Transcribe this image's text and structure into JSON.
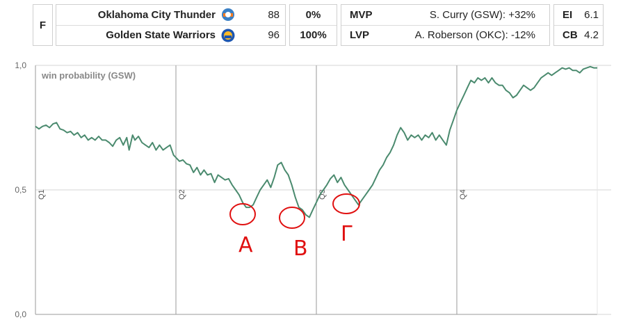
{
  "scoreboard": {
    "status": "F",
    "teams": [
      {
        "name": "Oklahoma City Thunder",
        "score": "88",
        "win_pct": "0%",
        "logo_icon": "okc-thunder-logo-icon",
        "logo_color": "#3a7fc4"
      },
      {
        "name": "Golden State Warriors",
        "score": "96",
        "win_pct": "100%",
        "logo_icon": "gsw-warriors-logo-icon",
        "logo_color": "#1d56b0"
      }
    ],
    "mvp": {
      "label": "MVP",
      "value": "S. Curry (GSW): +32%"
    },
    "lvp": {
      "label": "LVP",
      "value": "A. Roberson (OKC): -12%"
    },
    "ei": {
      "label": "EI",
      "value": "6.1"
    },
    "cb": {
      "label": "CB",
      "value": "4.2"
    }
  },
  "annotations": {
    "labels": [
      "A",
      "B",
      "Γ"
    ],
    "color": "#e01010"
  },
  "chart_data": {
    "type": "line",
    "title": "win probability (GSW)",
    "xlabel": "",
    "ylabel": "",
    "xlim": [
      0,
      48
    ],
    "ylim": [
      0,
      1
    ],
    "y_ticks": [
      "0,0",
      "0,5",
      "1,0"
    ],
    "y_tick_values": [
      0,
      0.5,
      1.0
    ],
    "quarter_labels": [
      "Q1",
      "Q2",
      "Q3",
      "Q4"
    ],
    "quarter_starts": [
      0,
      12,
      24,
      36
    ],
    "line_color": "#4a8a6e",
    "grid": true,
    "series": [
      {
        "values": [
          [
            0,
            0.755
          ],
          [
            0.3,
            0.745
          ],
          [
            0.6,
            0.755
          ],
          [
            0.9,
            0.76
          ],
          [
            1.2,
            0.75
          ],
          [
            1.5,
            0.765
          ],
          [
            1.8,
            0.77
          ],
          [
            2.1,
            0.745
          ],
          [
            2.4,
            0.74
          ],
          [
            2.7,
            0.73
          ],
          [
            3.0,
            0.735
          ],
          [
            3.3,
            0.72
          ],
          [
            3.6,
            0.73
          ],
          [
            3.9,
            0.71
          ],
          [
            4.2,
            0.72
          ],
          [
            4.5,
            0.7
          ],
          [
            4.8,
            0.71
          ],
          [
            5.1,
            0.7
          ],
          [
            5.4,
            0.715
          ],
          [
            5.7,
            0.7
          ],
          [
            6.0,
            0.7
          ],
          [
            6.3,
            0.69
          ],
          [
            6.6,
            0.675
          ],
          [
            6.9,
            0.7
          ],
          [
            7.2,
            0.71
          ],
          [
            7.5,
            0.68
          ],
          [
            7.8,
            0.71
          ],
          [
            8.0,
            0.66
          ],
          [
            8.3,
            0.72
          ],
          [
            8.5,
            0.7
          ],
          [
            8.8,
            0.715
          ],
          [
            9.1,
            0.69
          ],
          [
            9.4,
            0.68
          ],
          [
            9.7,
            0.67
          ],
          [
            10.0,
            0.69
          ],
          [
            10.3,
            0.66
          ],
          [
            10.6,
            0.68
          ],
          [
            10.9,
            0.66
          ],
          [
            11.2,
            0.67
          ],
          [
            11.5,
            0.68
          ],
          [
            11.8,
            0.64
          ],
          [
            12.0,
            0.63
          ],
          [
            12.3,
            0.615
          ],
          [
            12.6,
            0.62
          ],
          [
            12.9,
            0.605
          ],
          [
            13.2,
            0.6
          ],
          [
            13.5,
            0.57
          ],
          [
            13.8,
            0.59
          ],
          [
            14.1,
            0.56
          ],
          [
            14.4,
            0.58
          ],
          [
            14.7,
            0.56
          ],
          [
            15.0,
            0.565
          ],
          [
            15.3,
            0.53
          ],
          [
            15.6,
            0.56
          ],
          [
            15.9,
            0.55
          ],
          [
            16.2,
            0.54
          ],
          [
            16.5,
            0.545
          ],
          [
            16.8,
            0.52
          ],
          [
            17.1,
            0.5
          ],
          [
            17.4,
            0.48
          ],
          [
            17.7,
            0.45
          ],
          [
            18.0,
            0.43
          ],
          [
            18.3,
            0.43
          ],
          [
            18.6,
            0.44
          ],
          [
            18.9,
            0.47
          ],
          [
            19.2,
            0.5
          ],
          [
            19.5,
            0.52
          ],
          [
            19.8,
            0.54
          ],
          [
            20.1,
            0.51
          ],
          [
            20.4,
            0.55
          ],
          [
            20.7,
            0.6
          ],
          [
            21.0,
            0.61
          ],
          [
            21.3,
            0.58
          ],
          [
            21.6,
            0.56
          ],
          [
            21.9,
            0.52
          ],
          [
            22.2,
            0.47
          ],
          [
            22.5,
            0.43
          ],
          [
            22.8,
            0.42
          ],
          [
            23.1,
            0.4
          ],
          [
            23.4,
            0.39
          ],
          [
            23.7,
            0.42
          ],
          [
            24.0,
            0.45
          ],
          [
            24.3,
            0.48
          ],
          [
            24.6,
            0.5
          ],
          [
            24.9,
            0.52
          ],
          [
            25.2,
            0.545
          ],
          [
            25.5,
            0.56
          ],
          [
            25.8,
            0.53
          ],
          [
            26.1,
            0.55
          ],
          [
            26.4,
            0.52
          ],
          [
            26.7,
            0.5
          ],
          [
            27.0,
            0.48
          ],
          [
            27.3,
            0.46
          ],
          [
            27.6,
            0.44
          ],
          [
            27.9,
            0.46
          ],
          [
            28.2,
            0.48
          ],
          [
            28.5,
            0.5
          ],
          [
            28.8,
            0.52
          ],
          [
            29.1,
            0.55
          ],
          [
            29.4,
            0.58
          ],
          [
            29.7,
            0.6
          ],
          [
            30.0,
            0.63
          ],
          [
            30.3,
            0.65
          ],
          [
            30.6,
            0.68
          ],
          [
            30.9,
            0.72
          ],
          [
            31.2,
            0.75
          ],
          [
            31.5,
            0.73
          ],
          [
            31.8,
            0.7
          ],
          [
            32.1,
            0.72
          ],
          [
            32.4,
            0.71
          ],
          [
            32.7,
            0.72
          ],
          [
            33.0,
            0.7
          ],
          [
            33.3,
            0.72
          ],
          [
            33.6,
            0.71
          ],
          [
            33.9,
            0.73
          ],
          [
            34.2,
            0.7
          ],
          [
            34.5,
            0.72
          ],
          [
            34.8,
            0.7
          ],
          [
            35.1,
            0.68
          ],
          [
            35.4,
            0.74
          ],
          [
            35.7,
            0.78
          ],
          [
            36.0,
            0.82
          ],
          [
            36.3,
            0.85
          ],
          [
            36.6,
            0.88
          ],
          [
            36.9,
            0.91
          ],
          [
            37.2,
            0.94
          ],
          [
            37.5,
            0.93
          ],
          [
            37.8,
            0.95
          ],
          [
            38.1,
            0.94
          ],
          [
            38.4,
            0.95
          ],
          [
            38.7,
            0.93
          ],
          [
            39.0,
            0.95
          ],
          [
            39.3,
            0.93
          ],
          [
            39.6,
            0.92
          ],
          [
            39.9,
            0.92
          ],
          [
            40.2,
            0.9
          ],
          [
            40.5,
            0.89
          ],
          [
            40.8,
            0.87
          ],
          [
            41.1,
            0.88
          ],
          [
            41.4,
            0.9
          ],
          [
            41.7,
            0.92
          ],
          [
            42.0,
            0.91
          ],
          [
            42.3,
            0.9
          ],
          [
            42.6,
            0.91
          ],
          [
            42.9,
            0.93
          ],
          [
            43.2,
            0.95
          ],
          [
            43.5,
            0.96
          ],
          [
            43.8,
            0.97
          ],
          [
            44.1,
            0.96
          ],
          [
            44.4,
            0.97
          ],
          [
            44.7,
            0.98
          ],
          [
            45.0,
            0.99
          ],
          [
            45.3,
            0.985
          ],
          [
            45.6,
            0.99
          ],
          [
            45.9,
            0.98
          ],
          [
            46.2,
            0.98
          ],
          [
            46.5,
            0.97
          ],
          [
            46.8,
            0.985
          ],
          [
            47.1,
            0.99
          ],
          [
            47.4,
            0.995
          ],
          [
            47.7,
            0.99
          ],
          [
            48.0,
            0.99
          ]
        ]
      }
    ]
  }
}
